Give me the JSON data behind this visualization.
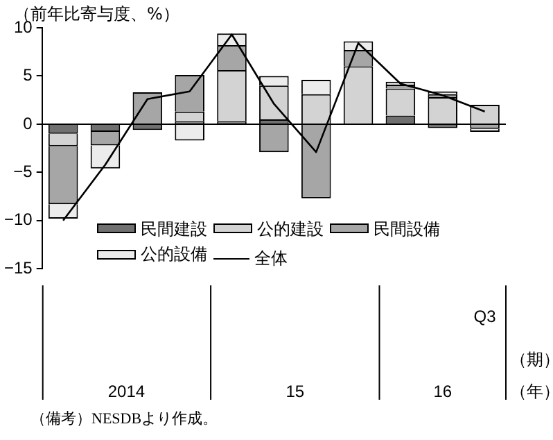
{
  "chart_data": {
    "type": "bar",
    "stacked": true,
    "ylabel": "（前年比寄与度、%）",
    "xlabel": "（期）（年）",
    "categories": [
      null,
      null,
      null,
      null,
      null,
      null,
      null,
      null,
      null,
      null,
      "Q3"
    ],
    "ylim": [
      -15,
      10
    ],
    "yticks": [
      -15,
      -10,
      -5,
      0,
      5,
      10
    ],
    "grid": false,
    "ref_lines": [
      {
        "axis": "y",
        "value": 0,
        "color": "#000000"
      }
    ],
    "legend": "bottom right",
    "marker": "none",
    "series": [
      {
        "name": "民間建設",
        "color": "#707070",
        "values": [
          -1.0,
          -0.8,
          -0.6,
          0.3,
          0.3,
          0.5,
          0,
          0,
          0.9,
          -0.4,
          0
        ]
      },
      {
        "name": "公的建設",
        "color": "#d3d3d3",
        "values": [
          -1.3,
          0,
          0,
          1.0,
          5.3,
          3.5,
          3.1,
          6.0,
          2.8,
          2.8,
          2.0
        ]
      },
      {
        "name": "民間設備",
        "color": "#a6a6a6",
        "values": [
          -6.0,
          -1.4,
          3.3,
          3.8,
          2.6,
          -2.9,
          -7.7,
          1.7,
          0.4,
          0.3,
          -0.5
        ]
      },
      {
        "name": "公的設備",
        "color": "#ececec",
        "values": [
          -1.5,
          -2.4,
          0,
          -1.7,
          1.2,
          1.0,
          1.5,
          0.9,
          0.3,
          0.3,
          -0.3
        ]
      },
      {
        "name": "全体",
        "type": "line",
        "color": "#000000",
        "values": [
          -10.0,
          -4.2,
          2.6,
          3.4,
          9.3,
          2.1,
          -2.9,
          8.4,
          4.2,
          3.0,
          1.3
        ]
      }
    ],
    "annotations": [
      "2014",
      "15",
      "16",
      "（備考）NESDBより作成。"
    ]
  }
}
